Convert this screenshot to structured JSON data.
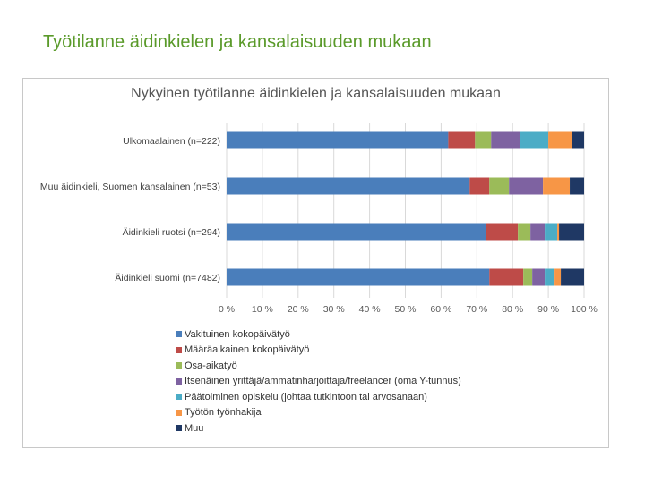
{
  "slide_title": "Työtilanne äidinkielen ja kansalaisuuden mukaan",
  "chart_data": {
    "type": "bar",
    "orientation": "horizontal",
    "stacked": true,
    "title": "Nykyinen työtilanne äidinkielen ja kansalaisuuden mukaan",
    "categories": [
      "Ulkomaalainen (n=222)",
      "Muu äidinkieli, Suomen kansalainen (n=53)",
      "Äidinkieli ruotsi (n=294)",
      "Äidinkieli suomi (n=7482)"
    ],
    "xlabel": "",
    "ylabel": "",
    "xlim": [
      0,
      100
    ],
    "x_ticks": [
      "0 %",
      "10 %",
      "20 %",
      "30 %",
      "40 %",
      "50 %",
      "60 %",
      "70 %",
      "80 %",
      "90 %",
      "100 %"
    ],
    "legend_position": "bottom",
    "series": [
      {
        "name": "Vakituinen kokopäivätyö",
        "color": "#4a7ebb",
        "values": [
          62,
          68,
          72.5,
          73.5
        ]
      },
      {
        "name": "Määräaikainen kokopäivätyö",
        "color": "#be4b48",
        "values": [
          7.5,
          5.5,
          9,
          9.5
        ]
      },
      {
        "name": "Osa-aikatyö",
        "color": "#9bbb59",
        "values": [
          4.5,
          5.5,
          3.5,
          2.5
        ]
      },
      {
        "name": "Itsenäinen yrittäjä/ammatinharjoittaja/freelancer (oma Y-tunnus)",
        "color": "#7e62a1",
        "values": [
          8,
          9.5,
          4,
          3.5
        ]
      },
      {
        "name": "Päätoiminen opiskelu (johtaa tutkintoon tai arvosanaan)",
        "color": "#4bacc6",
        "values": [
          8,
          0,
          3.5,
          2.5
        ]
      },
      {
        "name": "Työtön työnhakija",
        "color": "#f79646",
        "values": [
          6.5,
          7.5,
          0.5,
          2
        ]
      },
      {
        "name": "Muu",
        "color": "#1f3864",
        "values": [
          3.5,
          4,
          7,
          6.5
        ]
      }
    ]
  }
}
